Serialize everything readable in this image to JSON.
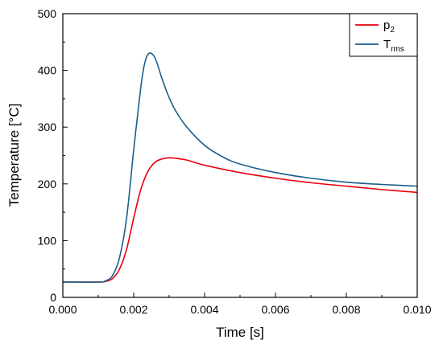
{
  "chart_data": {
    "type": "line",
    "xlabel": "Time [s]",
    "ylabel": "Temperature [°C]",
    "xlim": [
      0.0,
      0.01
    ],
    "ylim": [
      0,
      500
    ],
    "x_ticks": [
      "0.000",
      "0.002",
      "0.004",
      "0.006",
      "0.008",
      "0.010"
    ],
    "y_ticks": [
      "0",
      "100",
      "200",
      "300",
      "400",
      "500"
    ],
    "grid": false,
    "legend_position": "top-right",
    "series": [
      {
        "name_main": "p",
        "name_sub": "2",
        "color": "#e8000b",
        "x": [
          0.0,
          0.001,
          0.0012,
          0.0014,
          0.0016,
          0.0018,
          0.002,
          0.0022,
          0.0024,
          0.0026,
          0.0028,
          0.003,
          0.0032,
          0.0035,
          0.004,
          0.005,
          0.006,
          0.007,
          0.008,
          0.009,
          0.01
        ],
        "y": [
          27,
          27,
          28,
          33,
          50,
          85,
          140,
          190,
          222,
          238,
          244,
          246,
          245,
          242,
          233,
          220,
          210,
          202,
          196,
          190,
          185
        ]
      },
      {
        "name_main": "T",
        "name_sub": "rms",
        "color": "#1a5f8a",
        "x": [
          0.0,
          0.001,
          0.0012,
          0.0014,
          0.0016,
          0.0018,
          0.002,
          0.0022,
          0.0023,
          0.0024,
          0.0025,
          0.0026,
          0.0027,
          0.0028,
          0.003,
          0.0032,
          0.0035,
          0.004,
          0.0045,
          0.005,
          0.006,
          0.007,
          0.008,
          0.009,
          0.01
        ],
        "y": [
          27,
          27,
          29,
          38,
          70,
          140,
          260,
          370,
          410,
          428,
          430,
          422,
          405,
          385,
          352,
          327,
          300,
          268,
          248,
          235,
          220,
          210,
          203,
          199,
          196
        ]
      }
    ]
  }
}
